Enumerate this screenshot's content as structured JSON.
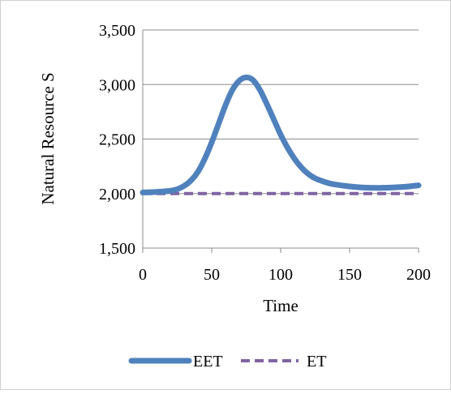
{
  "chart_data": {
    "type": "line",
    "title": "",
    "xlabel": "Time",
    "ylabel": "Natural Resource S",
    "xlim": [
      0,
      200
    ],
    "ylim": [
      1500,
      3500
    ],
    "x_ticks": [
      {
        "value": 0,
        "label": "0"
      },
      {
        "value": 50,
        "label": "50"
      },
      {
        "value": 100,
        "label": "100"
      },
      {
        "value": 150,
        "label": "150"
      },
      {
        "value": 200,
        "label": "200"
      }
    ],
    "y_ticks": [
      {
        "value": 1500,
        "label": "1,500"
      },
      {
        "value": 2000,
        "label": "2,000"
      },
      {
        "value": 2500,
        "label": "2,500"
      },
      {
        "value": 3000,
        "label": "3,000"
      },
      {
        "value": 3500,
        "label": "3,500"
      }
    ],
    "grid": "horizontal",
    "legend_position": "bottom",
    "series": [
      {
        "name": "EET",
        "color": "#4f81bd",
        "style": "solid",
        "x": [
          0,
          10,
          20,
          25,
          30,
          35,
          40,
          45,
          50,
          55,
          60,
          65,
          70,
          75,
          80,
          85,
          90,
          95,
          100,
          105,
          110,
          115,
          120,
          125,
          130,
          135,
          140,
          150,
          160,
          170,
          180,
          190,
          200
        ],
        "y": [
          2010,
          2015,
          2025,
          2040,
          2070,
          2120,
          2200,
          2320,
          2470,
          2640,
          2810,
          2950,
          3035,
          3065,
          3040,
          2950,
          2820,
          2680,
          2540,
          2420,
          2320,
          2240,
          2180,
          2140,
          2115,
          2095,
          2082,
          2065,
          2055,
          2052,
          2055,
          2062,
          2075
        ]
      },
      {
        "name": "ET",
        "color": "#8064a2",
        "style": "dashed",
        "x": [
          0,
          200
        ],
        "y": [
          2000,
          2000
        ]
      }
    ]
  }
}
